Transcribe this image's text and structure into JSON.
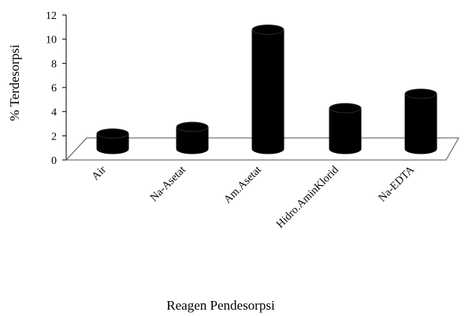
{
  "chart_data": {
    "type": "bar",
    "style": "3d-cylinder",
    "categories": [
      "Air",
      "Na-Asetat",
      "Am.Asetat",
      "Hidro.AminKlorid",
      "Na-EDTA"
    ],
    "values": [
      1.4,
      2.0,
      10.8,
      3.7,
      5.0
    ],
    "xlabel": "Reagen Pendesorpsi",
    "ylabel": "% Terdesorpsi",
    "ylim": [
      0,
      12
    ],
    "yticks": [
      0,
      2,
      4,
      6,
      8,
      10,
      12
    ],
    "grid": false,
    "bar_color": "#000000"
  }
}
